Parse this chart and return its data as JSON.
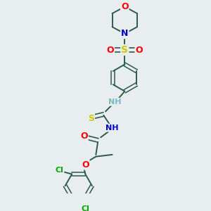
{
  "bg_color": "#e8eef0",
  "bond_color": "#2d5a4a",
  "atom_colors": {
    "O": "#ff0000",
    "N": "#0000cc",
    "S": "#cccc00",
    "Cl": "#00aa00",
    "C": "#2d5a4a",
    "H": "#7ab8c8"
  },
  "figsize": [
    3.0,
    3.0
  ],
  "dpi": 100
}
